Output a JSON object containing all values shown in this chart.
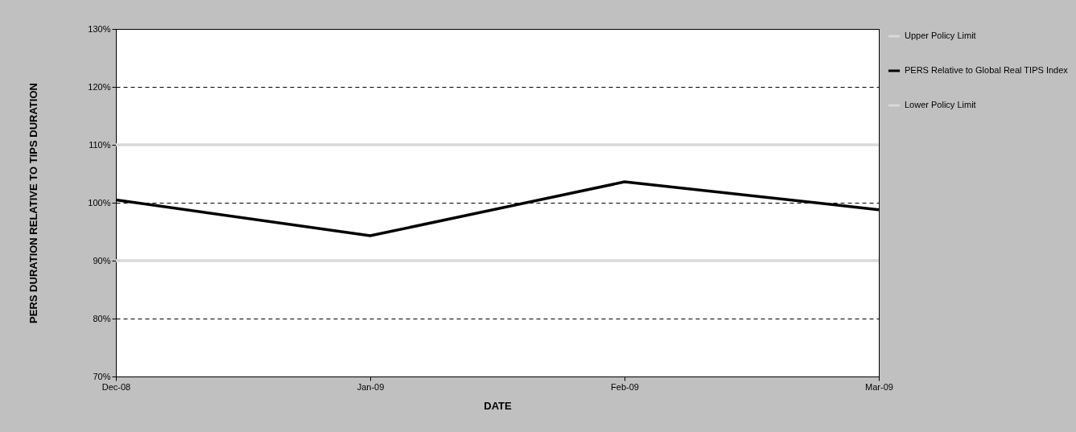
{
  "chart_data": {
    "type": "line",
    "xlabel": "DATE",
    "ylabel": "PERS DURATION RELATIVE TO TIPS DURATION",
    "categories": [
      "Dec-08",
      "Jan-09",
      "Feb-09",
      "Mar-09"
    ],
    "series": [
      {
        "name": "Upper Policy Limit",
        "color": "#d9d9d9",
        "values": [
          110,
          110,
          110,
          110
        ]
      },
      {
        "name": "PERS Relative to Global Real TIPS Index",
        "color": "#000000",
        "values": [
          100.5,
          94.3,
          103.6,
          98.8
        ]
      },
      {
        "name": "Lower Policy Limit",
        "color": "#d9d9d9",
        "values": [
          90,
          90,
          90,
          90
        ]
      }
    ],
    "ylim": [
      70,
      130
    ],
    "yticks": [
      {
        "value": 70,
        "label": "70%"
      },
      {
        "value": 80,
        "label": "80%"
      },
      {
        "value": 90,
        "label": "90%"
      },
      {
        "value": 100,
        "label": "100%"
      },
      {
        "value": 110,
        "label": "110%"
      },
      {
        "value": 120,
        "label": "120%"
      },
      {
        "value": 130,
        "label": "130%"
      }
    ],
    "grid": "y",
    "legend": "right",
    "marker": "none",
    "line_style": "solid"
  }
}
